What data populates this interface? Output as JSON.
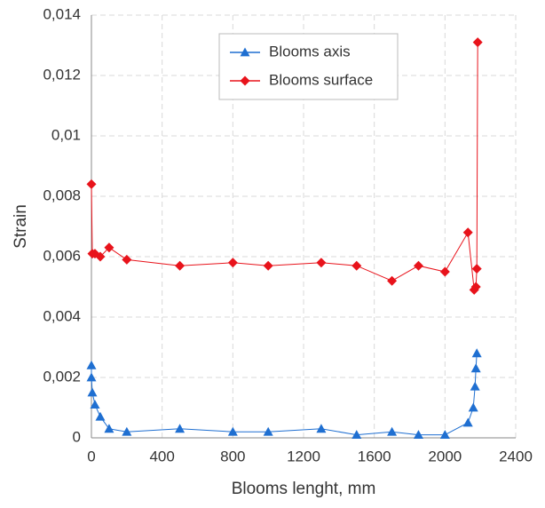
{
  "chart_data": {
    "type": "line",
    "x_label": "Blooms lenght, mm",
    "y_label": "Strain",
    "xlim": [
      0,
      2400
    ],
    "xticks": [
      0,
      400,
      800,
      1200,
      1600,
      2000,
      2400
    ],
    "ylim": [
      0,
      0.014
    ],
    "yticks": [
      0,
      {
        "value": 0.002,
        "label": "0,002"
      },
      {
        "value": 0.004,
        "label": "0,004"
      },
      {
        "value": 0.006,
        "label": "0,006"
      },
      {
        "value": 0.008,
        "label": "0,008"
      },
      {
        "value": 0.01,
        "label": "0,01"
      },
      {
        "value": 0.012,
        "label": "0,012"
      },
      {
        "value": 0.014,
        "label": "0,014"
      }
    ],
    "grid": true,
    "legend": "top-center",
    "series": [
      {
        "name": "Blooms axis",
        "color": "#1f6fd1",
        "marker": "triangle",
        "x": [
          0,
          0,
          5,
          20,
          50,
          100,
          200,
          500,
          800,
          1000,
          1300,
          1500,
          1700,
          1850,
          2000,
          2130,
          2160,
          2170,
          2175,
          2180
        ],
        "values": [
          0.0024,
          0.002,
          0.0015,
          0.0011,
          0.0007,
          0.0003,
          0.0002,
          0.0003,
          0.0002,
          0.0002,
          0.0003,
          0.0001,
          0.0002,
          0.0001,
          0.0001,
          0.0005,
          0.001,
          0.0017,
          0.0023,
          0.0028
        ]
      },
      {
        "name": "Blooms surface",
        "color": "#e8131b",
        "marker": "diamond",
        "x": [
          0,
          5,
          20,
          50,
          100,
          200,
          500,
          800,
          1000,
          1300,
          1500,
          1700,
          1850,
          2000,
          2130,
          2165,
          2175,
          2180,
          2185
        ],
        "values": [
          0.0084,
          0.0061,
          0.0061,
          0.006,
          0.0063,
          0.0059,
          0.0057,
          0.0058,
          0.0057,
          0.0058,
          0.0057,
          0.0052,
          0.0057,
          0.0055,
          0.0068,
          0.0049,
          0.005,
          0.0056,
          0.0131
        ]
      }
    ]
  }
}
